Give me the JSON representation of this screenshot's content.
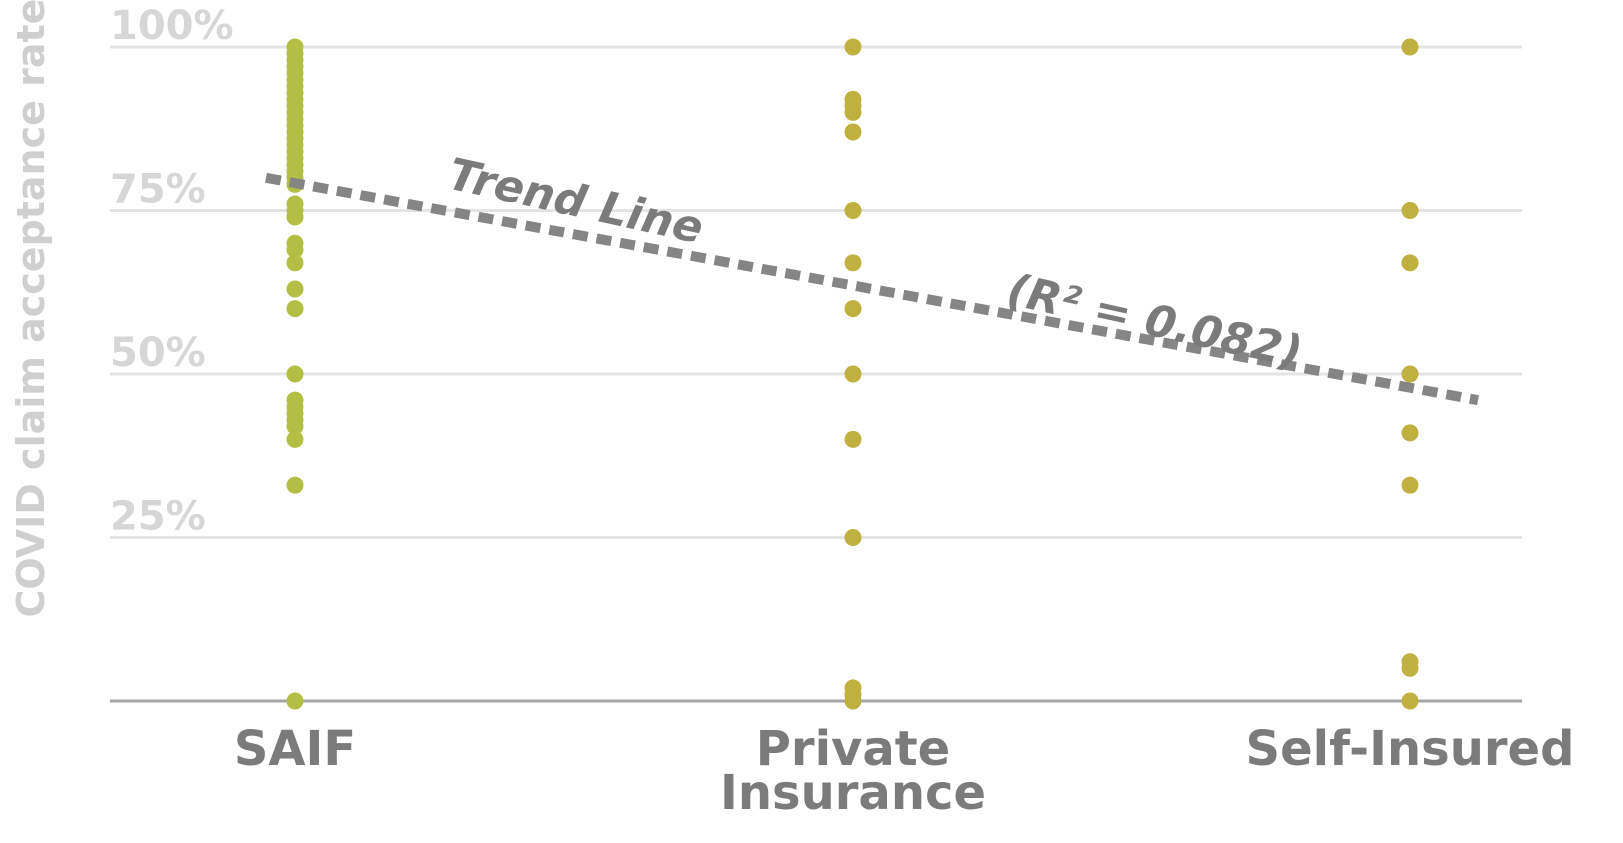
{
  "chart_data": {
    "type": "scatter",
    "ylabel": "COVID claim acceptance rate",
    "xlabel": "",
    "categories": [
      "SAIF",
      "Private\nInsurance",
      "Self-Insured"
    ],
    "yticks": [
      "25%",
      "50%",
      "75%",
      "100%"
    ],
    "ylim": [
      0,
      100
    ],
    "grid": true,
    "series": [
      {
        "category": "SAIF",
        "color": "#b3be45",
        "values": [
          100,
          99,
          98,
          97,
          96,
          95,
          94,
          93,
          92,
          91,
          90,
          89,
          88,
          87,
          86,
          85,
          84,
          83,
          82,
          81,
          80,
          79,
          76,
          75,
          74,
          70,
          69,
          67,
          63,
          60,
          50,
          46,
          45,
          44,
          43,
          42,
          40,
          33,
          0
        ]
      },
      {
        "category": "Private\nInsurance",
        "color": "#c0b03f",
        "values": [
          100,
          92,
          91,
          90,
          87,
          75,
          67,
          60,
          50,
          40,
          25,
          2,
          1,
          0
        ]
      },
      {
        "category": "Self-Insured",
        "color": "#c0b03f",
        "values": [
          100,
          75,
          67,
          50,
          41,
          33,
          6,
          5,
          0
        ]
      }
    ],
    "trend_line": {
      "label": "Trend Line",
      "r2_label": "(R² = 0.082)",
      "start": 80,
      "end": 46,
      "color": "#858585"
    }
  }
}
